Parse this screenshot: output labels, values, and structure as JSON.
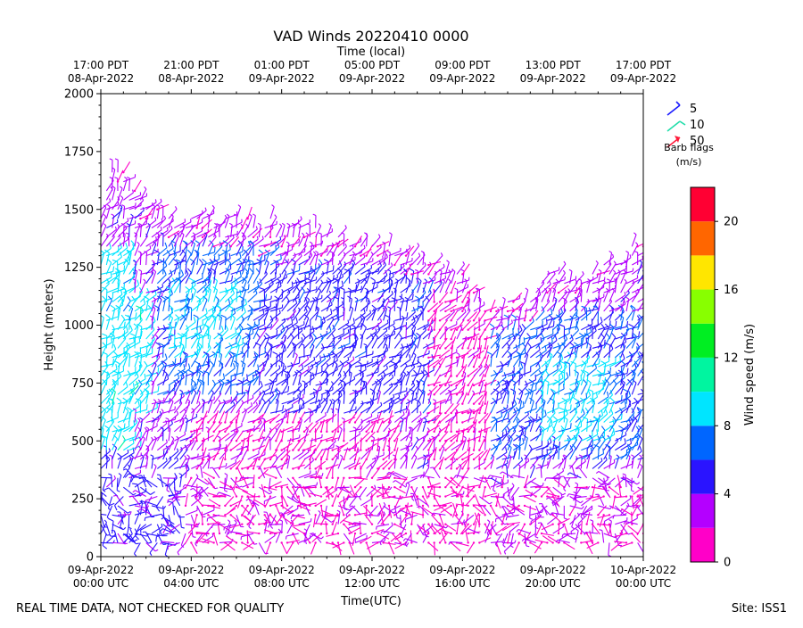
{
  "chart_data": {
    "type": "wind-barb",
    "title": "VAD Winds 20220410 0000",
    "top_axis_label": "Time (local)",
    "xlabel": "Time(UTC)",
    "ylabel": "Height (meters)",
    "x_range_hours": [
      0,
      24
    ],
    "ylim": [
      0,
      2000
    ],
    "y_ticks": [
      0,
      250,
      500,
      750,
      1000,
      1250,
      1500,
      1750,
      2000
    ],
    "y_tick_labels": [
      "0",
      "250",
      "500",
      "750",
      "1000",
      "1250",
      "1500",
      "1750",
      "2000"
    ],
    "x_ticks": [
      {
        "hour": 0,
        "utc_date": "09-Apr-2022",
        "utc_time": "00:00 UTC",
        "local_time": "17:00 PDT",
        "local_date": "08-Apr-2022"
      },
      {
        "hour": 4,
        "utc_date": "09-Apr-2022",
        "utc_time": "04:00 UTC",
        "local_time": "21:00 PDT",
        "local_date": "08-Apr-2022"
      },
      {
        "hour": 8,
        "utc_date": "09-Apr-2022",
        "utc_time": "08:00 UTC",
        "local_time": "01:00 PDT",
        "local_date": "09-Apr-2022"
      },
      {
        "hour": 12,
        "utc_date": "09-Apr-2022",
        "utc_time": "12:00 UTC",
        "local_time": "05:00 PDT",
        "local_date": "09-Apr-2022"
      },
      {
        "hour": 16,
        "utc_date": "09-Apr-2022",
        "utc_time": "16:00 UTC",
        "local_time": "09:00 PDT",
        "local_date": "09-Apr-2022"
      },
      {
        "hour": 20,
        "utc_date": "09-Apr-2022",
        "utc_time": "20:00 UTC",
        "local_time": "13:00 PDT",
        "local_date": "09-Apr-2022"
      },
      {
        "hour": 24,
        "utc_date": "10-Apr-2022",
        "utc_time": "00:00 UTC",
        "local_time": "17:00 PDT",
        "local_date": "09-Apr-2022"
      }
    ],
    "legend": {
      "items": [
        {
          "label": "5",
          "color": "#1a1aff"
        },
        {
          "label": "10",
          "color": "#22ddaa"
        },
        {
          "label": "50",
          "color": "#ff1a3a"
        }
      ],
      "caption_line1": "Barb flags",
      "caption_line2": "(m/s)"
    },
    "colorbar": {
      "label": "Wind speed (m/s)",
      "min": 0,
      "max": 22,
      "tick_values": [
        0,
        4,
        8,
        12,
        16,
        20
      ],
      "tick_labels": [
        "0",
        "4",
        "8",
        "12",
        "16",
        "20"
      ],
      "bins": [
        {
          "from": 0,
          "to": 2,
          "color": "#ff00c8"
        },
        {
          "from": 2,
          "to": 4,
          "color": "#b400ff"
        },
        {
          "from": 4,
          "to": 6,
          "color": "#2a14ff"
        },
        {
          "from": 6,
          "to": 8,
          "color": "#0066ff"
        },
        {
          "from": 8,
          "to": 10,
          "color": "#00e5ff"
        },
        {
          "from": 10,
          "to": 12,
          "color": "#00f5a0"
        },
        {
          "from": 12,
          "to": 14,
          "color": "#00ee22"
        },
        {
          "from": 14,
          "to": 16,
          "color": "#88ff00"
        },
        {
          "from": 16,
          "to": 18,
          "color": "#ffe600"
        },
        {
          "from": 18,
          "to": 20,
          "color": "#ff6600"
        },
        {
          "from": 20,
          "to": 22,
          "color": "#ff0033"
        }
      ]
    },
    "wind_field": {
      "time_step_hours": 0.25,
      "height_step_m": 40,
      "min_height_m": 60,
      "top_height_by_hour": [
        [
          0,
          1500
        ],
        [
          0.6,
          1720
        ],
        [
          1.5,
          1560
        ],
        [
          2.6,
          1500
        ],
        [
          3.5,
          1440
        ],
        [
          6,
          1460
        ],
        [
          8,
          1430
        ],
        [
          10,
          1400
        ],
        [
          12,
          1360
        ],
        [
          14,
          1300
        ],
        [
          16,
          1200
        ],
        [
          17.5,
          1080
        ],
        [
          18.5,
          1120
        ],
        [
          20,
          1220
        ],
        [
          22,
          1220
        ],
        [
          23.5,
          1350
        ],
        [
          24,
          1380
        ]
      ],
      "speed_regions_m_s": [
        {
          "hours": [
            0,
            1.3
          ],
          "heights": [
            400,
            1300
          ],
          "speed": 9
        },
        {
          "hours": [
            0.8,
            2
          ],
          "heights": [
            600,
            1100
          ],
          "speed": 9
        },
        {
          "hours": [
            2.5,
            7.5
          ],
          "heights": [
            700,
            1300
          ],
          "speed": 6.5
        },
        {
          "hours": [
            3,
            6
          ],
          "heights": [
            850,
            1150
          ],
          "speed": 8.5
        },
        {
          "hours": [
            7,
            14.5
          ],
          "heights": [
            600,
            1250
          ],
          "speed": 5
        },
        {
          "hours": [
            17,
            24
          ],
          "heights": [
            400,
            1050
          ],
          "speed": 6
        },
        {
          "hours": [
            19.5,
            22.5
          ],
          "heights": [
            500,
            850
          ],
          "speed": 8.5
        },
        {
          "hours": [
            0,
            3.5
          ],
          "heights": [
            60,
            450
          ],
          "speed": 4.5
        },
        {
          "hours": [
            14.5,
            17
          ],
          "heights": [
            60,
            1100
          ],
          "speed": 1.5
        },
        {
          "hours": [
            4,
            13
          ],
          "heights": [
            60,
            600
          ],
          "speed": 1.8
        }
      ],
      "direction_note": "mostly westerly flow aloft, light and variable near surface"
    },
    "footer_left": "REAL TIME DATA, NOT CHECKED FOR QUALITY",
    "footer_right": "Site: ISS1"
  }
}
